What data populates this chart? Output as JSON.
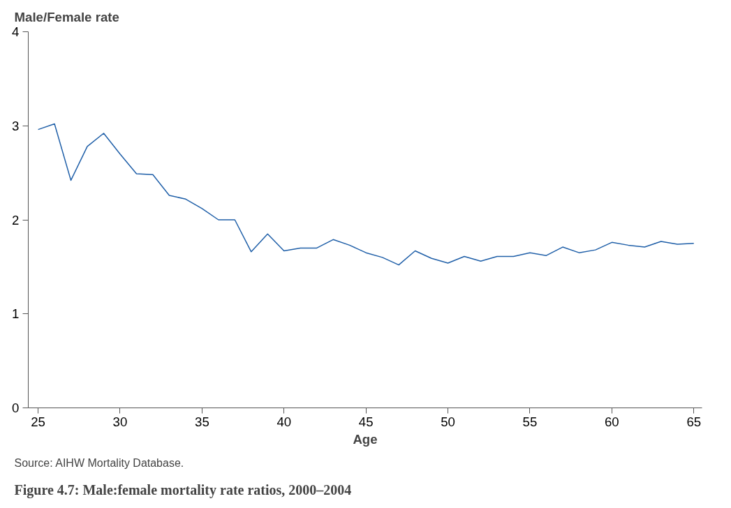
{
  "chart_data": {
    "type": "line",
    "title": "Figure 4.7: Male:female mortality rate ratios, 2000–2004",
    "ylabel": "Male/Female rate",
    "xlabel": "Age",
    "annotations": [
      "Source: AIHW Mortality Database."
    ],
    "x": [
      25,
      26,
      27,
      28,
      29,
      30,
      31,
      32,
      33,
      34,
      35,
      36,
      37,
      38,
      39,
      40,
      41,
      42,
      43,
      44,
      45,
      46,
      47,
      48,
      49,
      50,
      51,
      52,
      53,
      54,
      55,
      56,
      57,
      58,
      59,
      60,
      61,
      62,
      63,
      64,
      65
    ],
    "series": [
      {
        "color": "#1f5fa8",
        "values": [
          2.96,
          3.02,
          2.42,
          2.78,
          2.92,
          2.7,
          2.49,
          2.48,
          2.26,
          2.22,
          2.12,
          2.0,
          2.0,
          1.66,
          1.85,
          1.67,
          1.7,
          1.7,
          1.79,
          1.73,
          1.65,
          1.6,
          1.52,
          1.67,
          1.59,
          1.54,
          1.61,
          1.56,
          1.61,
          1.61,
          1.65,
          1.62,
          1.71,
          1.65,
          1.68,
          1.76,
          1.73,
          1.71,
          1.77,
          1.74,
          1.75
        ]
      }
    ],
    "xlim": [
      24.4,
      65.5
    ],
    "ylim": [
      0,
      4
    ],
    "xticks": [
      25,
      30,
      35,
      40,
      45,
      50,
      55,
      60,
      65
    ],
    "yticks": [
      0,
      1,
      2,
      3,
      4
    ],
    "grid": false,
    "marker": "none",
    "line_style": "solid"
  }
}
